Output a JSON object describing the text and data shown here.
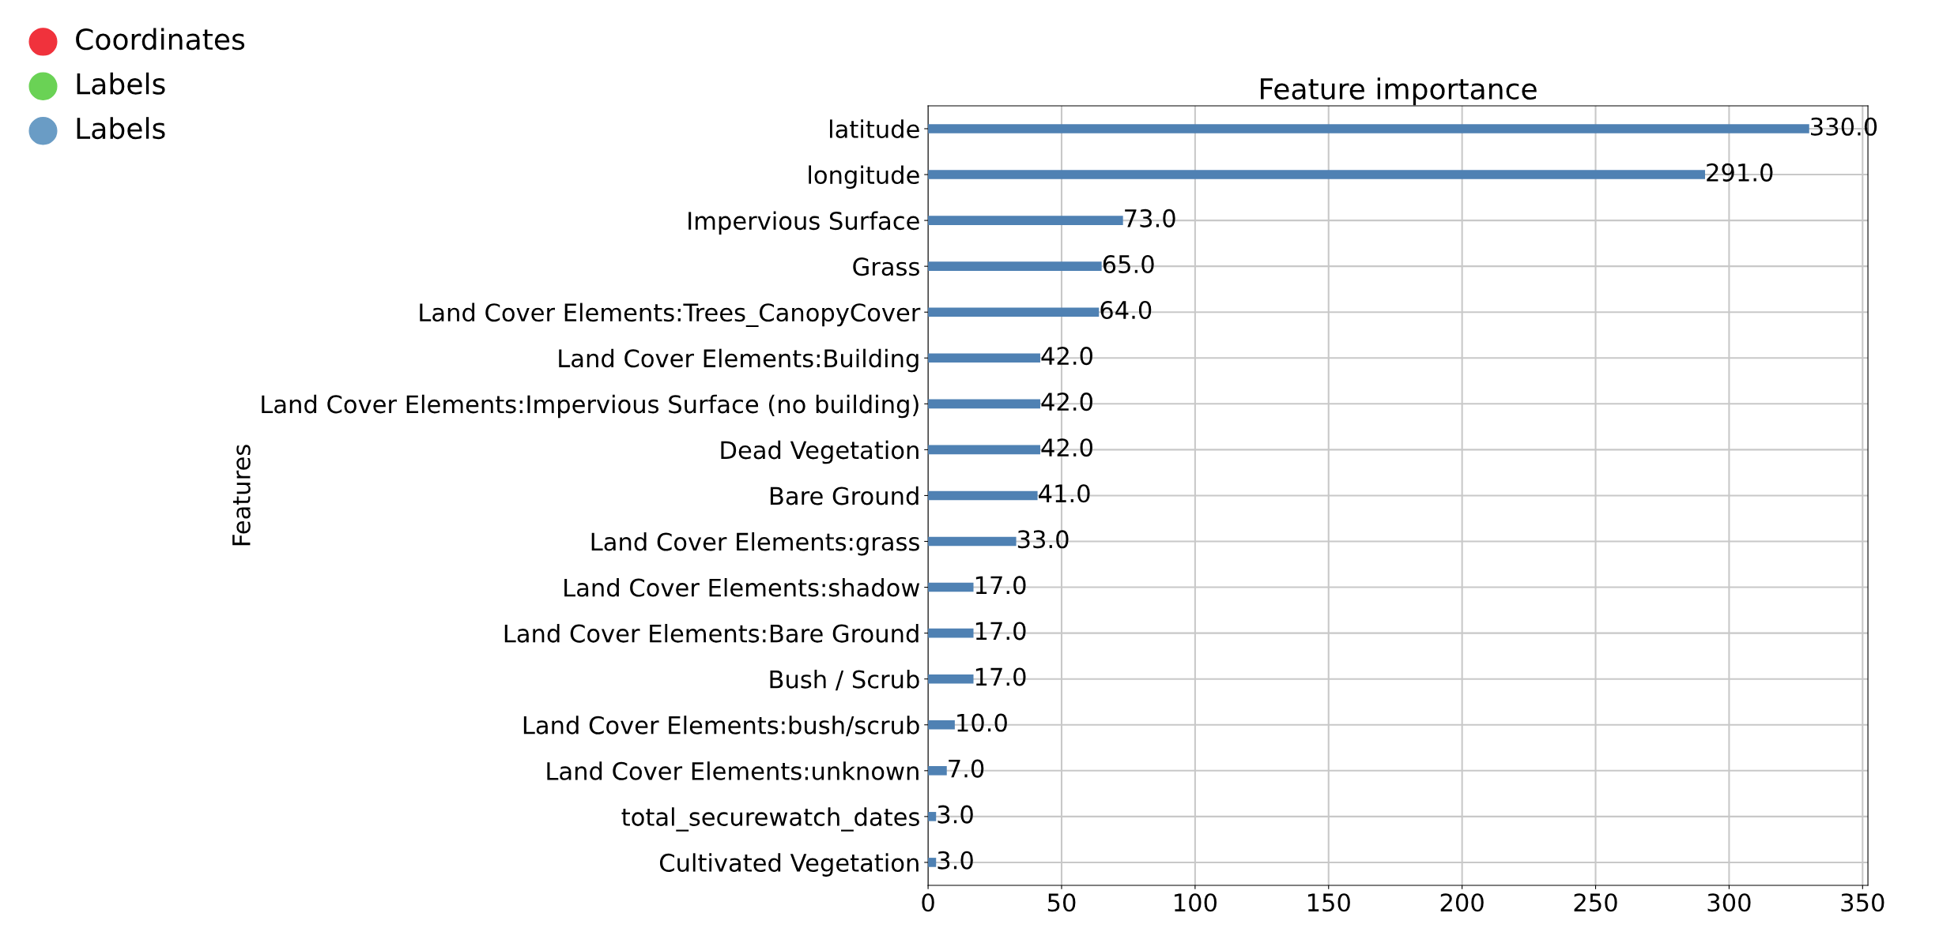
{
  "chart_data": {
    "type": "bar",
    "orientation": "horizontal",
    "title": "Feature importance",
    "ylabel": "Features",
    "categories": [
      "latitude",
      "longitude",
      "Impervious Surface",
      "Grass",
      "Land Cover Elements:Trees_CanopyCover",
      "Land Cover Elements:Building",
      "Land Cover Elements:Impervious Surface (no building)",
      "Dead Vegetation",
      "Bare Ground",
      "Land Cover Elements:grass",
      "Land Cover Elements:shadow",
      "Land Cover Elements:Bare Ground",
      "Bush / Scrub",
      "Land Cover Elements:bush/scrub",
      "Land Cover Elements:unknown",
      "total_securewatch_dates",
      "Cultivated Vegetation"
    ],
    "values": [
      330,
      291,
      73,
      65,
      64,
      42,
      42,
      42,
      41,
      33,
      17,
      17,
      17,
      10,
      7,
      3,
      3
    ],
    "value_labels": [
      "330.0",
      "291.0",
      "73.0",
      "65.0",
      "64.0",
      "42.0",
      "42.0",
      "42.0",
      "41.0",
      "33.0",
      "17.0",
      "17.0",
      "17.0",
      "10.0",
      "7.0",
      "3.0",
      "3.0"
    ],
    "color": "#4f81b3",
    "xlim": [
      0,
      352
    ],
    "xticks": [
      0,
      50,
      100,
      150,
      200,
      250,
      300,
      350
    ],
    "grid": true,
    "annotations": [
      "Coordinates",
      "Labels",
      "Labels"
    ]
  }
}
